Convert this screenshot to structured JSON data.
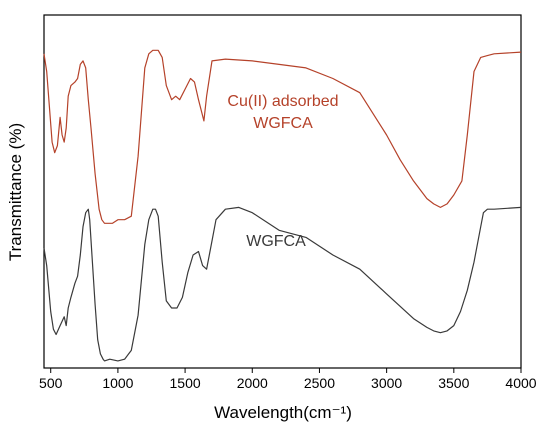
{
  "chart_data": {
    "type": "line",
    "xlabel": "Wavelength(cm⁻¹)",
    "ylabel": "Transmittance (%)",
    "xlim": [
      450,
      4000
    ],
    "ylim": [
      0,
      100
    ],
    "x_ticks": [
      500,
      1000,
      1500,
      2000,
      2500,
      3000,
      3500,
      4000
    ],
    "grid": false,
    "series": [
      {
        "name": "Cu(II) adsorbed WGFCA",
        "label_lines": [
          "Cu(II) adsorbed",
          "WGFCA"
        ],
        "color": "#b5422a",
        "x": [
          450,
          470,
          490,
          510,
          530,
          550,
          570,
          585,
          600,
          615,
          630,
          650,
          680,
          700,
          720,
          740,
          760,
          780,
          800,
          830,
          860,
          880,
          900,
          930,
          960,
          1000,
          1050,
          1100,
          1150,
          1200,
          1230,
          1260,
          1300,
          1330,
          1360,
          1400,
          1430,
          1460,
          1500,
          1540,
          1570,
          1600,
          1640,
          1660,
          1700,
          1800,
          2000,
          2200,
          2400,
          2600,
          2800,
          3000,
          3100,
          3200,
          3300,
          3350,
          3400,
          3450,
          3500,
          3560,
          3600,
          3650,
          3700,
          3750,
          3800,
          4000
        ],
        "y": [
          89,
          84,
          74,
          64,
          61,
          63,
          71,
          66,
          64,
          68,
          77,
          80,
          81,
          82,
          86,
          87,
          85,
          76,
          68,
          55,
          45,
          42,
          41,
          41,
          41,
          42,
          42,
          43,
          60,
          85,
          89,
          90,
          90,
          88,
          80,
          76,
          77,
          76,
          79,
          82,
          81,
          76,
          70,
          77,
          87,
          87.5,
          87,
          86,
          85,
          82,
          78,
          66,
          59,
          53,
          48,
          46.5,
          45.5,
          46.5,
          49,
          53,
          66,
          84,
          88,
          88.5,
          89,
          89.5
        ]
      },
      {
        "name": "WGFCA",
        "label_lines": [
          "WGFCA"
        ],
        "color": "#3a3a3a",
        "x": [
          450,
          470,
          500,
          520,
          540,
          570,
          600,
          615,
          630,
          650,
          680,
          700,
          720,
          740,
          760,
          780,
          790,
          810,
          830,
          850,
          870,
          890,
          900,
          940,
          1000,
          1050,
          1100,
          1150,
          1200,
          1230,
          1260,
          1280,
          1300,
          1330,
          1360,
          1400,
          1440,
          1480,
          1520,
          1560,
          1600,
          1630,
          1660,
          1700,
          1730,
          1800,
          1900,
          2000,
          2200,
          2400,
          2600,
          2800,
          3000,
          3200,
          3300,
          3350,
          3400,
          3450,
          3500,
          3550,
          3600,
          3650,
          3700,
          3720,
          3750,
          3800,
          4000
        ],
        "y": [
          34,
          29,
          16,
          11,
          9.5,
          12,
          14.5,
          12,
          17,
          20,
          24,
          26,
          32,
          40,
          44,
          45,
          42,
          30,
          18,
          8,
          4,
          2.5,
          2,
          2.5,
          2,
          2.5,
          5,
          15,
          35,
          42,
          45,
          45,
          43,
          30,
          19,
          17,
          17,
          20,
          27,
          32,
          33,
          29,
          28,
          36,
          42,
          45,
          45.5,
          44,
          39,
          37,
          32,
          28,
          21,
          14,
          11.5,
          10.5,
          10,
          10.5,
          12,
          16,
          22,
          30,
          40,
          44,
          45,
          45,
          45.5
        ]
      }
    ]
  }
}
